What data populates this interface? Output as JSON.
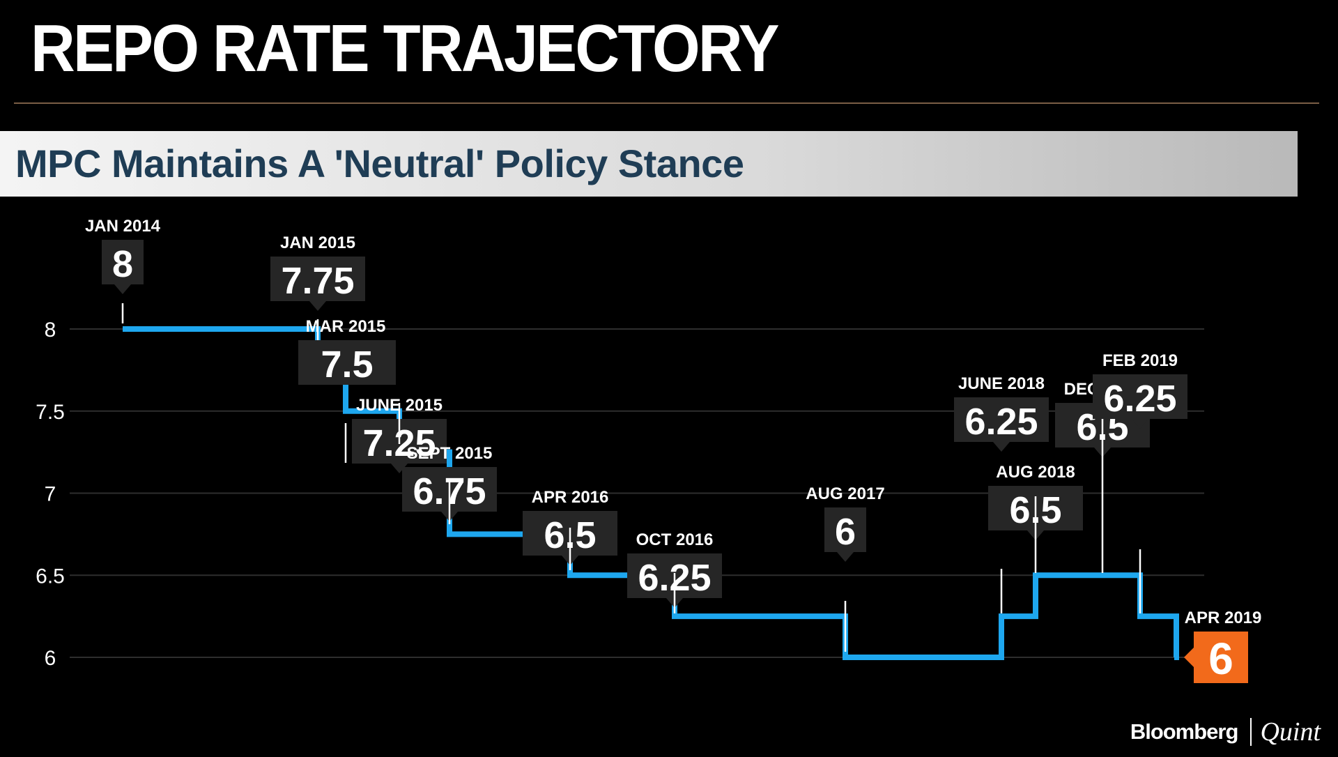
{
  "header": {
    "title": "REPO RATE TRAJECTORY",
    "subtitle": "MPC Maintains A 'Neutral' Policy Stance"
  },
  "brand": {
    "name": "Bloomberg",
    "partner": "Quint"
  },
  "colors": {
    "line": "#1ea7ef",
    "callout": "#262626",
    "highlight": "#f26a1b",
    "grid": "#2e2e2e",
    "background": "#000000"
  },
  "chart_data": {
    "type": "line",
    "step": true,
    "title": "MPC Maintains A 'Neutral' Policy Stance",
    "xlabel": "",
    "ylabel": "",
    "ylim": [
      6,
      8
    ],
    "yticks": [
      "6",
      "6.5",
      "7",
      "7.5",
      "8"
    ],
    "grid": true,
    "points": [
      {
        "date": "JAN 2014",
        "value": 8,
        "label": "8",
        "side": "above"
      },
      {
        "date": "JAN 2015",
        "value": 7.75,
        "label": "7.75",
        "side": "above"
      },
      {
        "date": "MAR 2015",
        "value": 7.5,
        "label": "7.5",
        "side": "below"
      },
      {
        "date": "JUNE 2015",
        "value": 7.25,
        "label": "7.25",
        "side": "above"
      },
      {
        "date": "SEPT 2015",
        "value": 6.75,
        "label": "6.75",
        "side": "above"
      },
      {
        "date": "APR 2016",
        "value": 6.5,
        "label": "6.5",
        "side": "above"
      },
      {
        "date": "OCT 2016",
        "value": 6.25,
        "label": "6.25",
        "side": "above"
      },
      {
        "date": "AUG 2017",
        "value": 6,
        "label": "6",
        "side": "above"
      },
      {
        "date": "JUNE 2018",
        "value": 6.25,
        "label": "6.25",
        "side": "above"
      },
      {
        "date": "AUG 2018",
        "value": 6.5,
        "label": "6.5",
        "side": "above"
      },
      {
        "date": "DEC 2018",
        "value": 6.5,
        "label": "6.5",
        "side": "above"
      },
      {
        "date": "FEB 2019",
        "value": 6.25,
        "label": "6.25",
        "side": "above"
      },
      {
        "date": "APR 2019",
        "value": 6,
        "label": "6",
        "side": "right",
        "highlight": true
      }
    ]
  }
}
